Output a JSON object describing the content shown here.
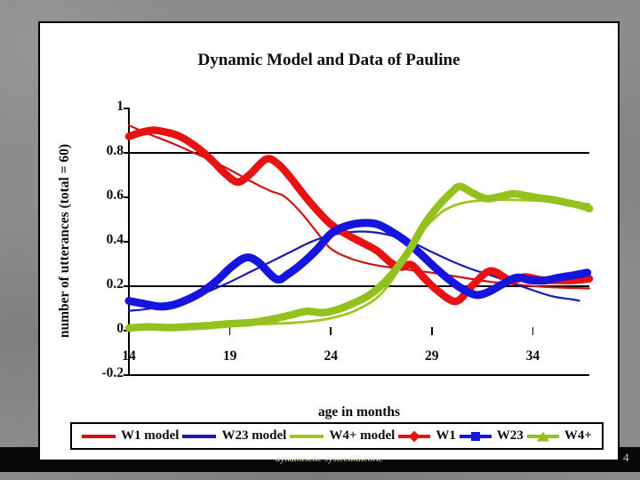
{
  "slide": {
    "title": "Dynamic Model and Data of Pauline",
    "footer": "dynamische systeemtheorie",
    "page_number": "4"
  },
  "chart_data": {
    "type": "line",
    "title": "Dynamic Model and Data of Pauline",
    "xlabel": "age in months",
    "ylabel": "number of utterances (total = 60)",
    "x_range": [
      14,
      36.8
    ],
    "y_range": [
      -0.2,
      1.0
    ],
    "x_axis_position": 0,
    "grid": "partial",
    "gridlines_at": [
      0.8,
      0.2
    ],
    "legend_position": "bottom",
    "y_ticks": [
      {
        "label": "1",
        "value": 1
      },
      {
        "label": "0.8",
        "value": 0.8
      },
      {
        "label": "0.6",
        "value": 0.6
      },
      {
        "label": "0.4",
        "value": 0.4
      },
      {
        "label": "0.2",
        "value": 0.2
      },
      {
        "label": "0",
        "value": 0
      },
      {
        "label": "-0.2",
        "value": -0.2
      }
    ],
    "x_ticks": [
      {
        "label": "14",
        "value": 14
      },
      {
        "label": "19",
        "value": 19
      },
      {
        "label": "24",
        "value": 24
      },
      {
        "label": "29",
        "value": 29
      },
      {
        "label": "34",
        "value": 34
      }
    ],
    "x_tick_marks": [
      19,
      24,
      29,
      34
    ],
    "series": [
      {
        "name": "W1 model",
        "color": "#cc1315",
        "width": 2.2,
        "marker": null,
        "points": [
          [
            14,
            0.92
          ],
          [
            15,
            0.88
          ],
          [
            16,
            0.845
          ],
          [
            17,
            0.805
          ],
          [
            18,
            0.765
          ],
          [
            19,
            0.72
          ],
          [
            20,
            0.67
          ],
          [
            21,
            0.625
          ],
          [
            21.7,
            0.6
          ],
          [
            22.5,
            0.53
          ],
          [
            23.3,
            0.44
          ],
          [
            24,
            0.365
          ],
          [
            25,
            0.32
          ],
          [
            26,
            0.295
          ],
          [
            27,
            0.28
          ],
          [
            28,
            0.268
          ],
          [
            29,
            0.257
          ],
          [
            30,
            0.243
          ],
          [
            31,
            0.228
          ],
          [
            32,
            0.215
          ],
          [
            33,
            0.205
          ],
          [
            34,
            0.197
          ],
          [
            35,
            0.191
          ],
          [
            36,
            0.188
          ],
          [
            36.8,
            0.186
          ]
        ]
      },
      {
        "name": "W23 model",
        "color": "#1b1bb4",
        "width": 2.2,
        "marker": null,
        "points": [
          [
            14,
            0.085
          ],
          [
            15,
            0.095
          ],
          [
            16,
            0.115
          ],
          [
            17,
            0.14
          ],
          [
            18,
            0.175
          ],
          [
            19,
            0.215
          ],
          [
            20,
            0.26
          ],
          [
            21,
            0.305
          ],
          [
            22,
            0.35
          ],
          [
            23,
            0.395
          ],
          [
            24,
            0.425
          ],
          [
            25,
            0.44
          ],
          [
            26,
            0.44
          ],
          [
            27,
            0.424
          ],
          [
            28,
            0.394
          ],
          [
            29,
            0.35
          ],
          [
            30,
            0.308
          ],
          [
            31,
            0.272
          ],
          [
            32,
            0.243
          ],
          [
            33,
            0.21
          ],
          [
            34,
            0.178
          ],
          [
            35,
            0.15
          ],
          [
            36,
            0.136
          ],
          [
            36.3,
            0.131
          ]
        ]
      },
      {
        "name": "W4+ model",
        "color": "#a0c51e",
        "width": 2.8,
        "marker": null,
        "points": [
          [
            14,
            0.012
          ],
          [
            15,
            0.013
          ],
          [
            16,
            0.015
          ],
          [
            17,
            0.017
          ],
          [
            18,
            0.019
          ],
          [
            19,
            0.021
          ],
          [
            20,
            0.024
          ],
          [
            21,
            0.027
          ],
          [
            22,
            0.031
          ],
          [
            23,
            0.038
          ],
          [
            24,
            0.052
          ],
          [
            25,
            0.078
          ],
          [
            26,
            0.125
          ],
          [
            26.5,
            0.163
          ],
          [
            27,
            0.22
          ],
          [
            27.5,
            0.29
          ],
          [
            28,
            0.37
          ],
          [
            28.5,
            0.44
          ],
          [
            29,
            0.49
          ],
          [
            29.5,
            0.53
          ],
          [
            30,
            0.555
          ],
          [
            30.5,
            0.57
          ],
          [
            31,
            0.578
          ],
          [
            32,
            0.585
          ],
          [
            33,
            0.585
          ],
          [
            34,
            0.582
          ],
          [
            35,
            0.577
          ],
          [
            36,
            0.571
          ],
          [
            36.8,
            0.565
          ]
        ]
      },
      {
        "name": "W1",
        "color": "#e81212",
        "width": 8.5,
        "marker": "diamond",
        "points": [
          [
            14,
            0.87
          ],
          [
            14.6,
            0.888
          ],
          [
            15.2,
            0.898
          ],
          [
            15.8,
            0.89
          ],
          [
            16.4,
            0.875
          ],
          [
            17,
            0.845
          ],
          [
            17.6,
            0.805
          ],
          [
            18.2,
            0.755
          ],
          [
            18.8,
            0.7
          ],
          [
            19.4,
            0.665
          ],
          [
            20,
            0.7
          ],
          [
            20.8,
            0.768
          ],
          [
            21.4,
            0.745
          ],
          [
            22,
            0.685
          ],
          [
            22.6,
            0.615
          ],
          [
            23.2,
            0.55
          ],
          [
            24,
            0.475
          ],
          [
            24.8,
            0.428
          ],
          [
            25.6,
            0.39
          ],
          [
            26.3,
            0.355
          ],
          [
            27,
            0.3
          ],
          [
            27.5,
            0.282
          ],
          [
            28,
            0.292
          ],
          [
            28.6,
            0.235
          ],
          [
            29.3,
            0.175
          ],
          [
            30.2,
            0.128
          ],
          [
            31,
            0.198
          ],
          [
            31.9,
            0.265
          ],
          [
            32.9,
            0.222
          ],
          [
            33.6,
            0.238
          ],
          [
            34.4,
            0.225
          ],
          [
            35.2,
            0.222
          ],
          [
            36,
            0.222
          ],
          [
            36.8,
            0.23
          ]
        ]
      },
      {
        "name": "W23",
        "color": "#1515dd",
        "width": 9,
        "marker": "square",
        "points": [
          [
            14,
            0.13
          ],
          [
            14.7,
            0.118
          ],
          [
            15.5,
            0.105
          ],
          [
            16.2,
            0.112
          ],
          [
            17,
            0.14
          ],
          [
            17.7,
            0.175
          ],
          [
            18.4,
            0.225
          ],
          [
            19.1,
            0.285
          ],
          [
            19.8,
            0.325
          ],
          [
            20.4,
            0.305
          ],
          [
            21.3,
            0.228
          ],
          [
            21.9,
            0.252
          ],
          [
            22.6,
            0.3
          ],
          [
            23.3,
            0.36
          ],
          [
            24,
            0.432
          ],
          [
            24.7,
            0.465
          ],
          [
            25.5,
            0.48
          ],
          [
            26.3,
            0.475
          ],
          [
            27,
            0.442
          ],
          [
            27.7,
            0.4
          ],
          [
            28.4,
            0.345
          ],
          [
            29.1,
            0.285
          ],
          [
            29.8,
            0.23
          ],
          [
            30.5,
            0.185
          ],
          [
            31.2,
            0.157
          ],
          [
            31.8,
            0.17
          ],
          [
            32.5,
            0.205
          ],
          [
            33.2,
            0.235
          ],
          [
            33.9,
            0.223
          ],
          [
            34.6,
            0.222
          ],
          [
            35.3,
            0.235
          ],
          [
            36,
            0.245
          ],
          [
            36.7,
            0.257
          ]
        ]
      },
      {
        "name": "W4+",
        "color": "#95c11f",
        "width": 8.5,
        "marker": "triangle",
        "points": [
          [
            14,
            0.008
          ],
          [
            15,
            0.013
          ],
          [
            16,
            0.01
          ],
          [
            17,
            0.014
          ],
          [
            18,
            0.019
          ],
          [
            19,
            0.027
          ],
          [
            20,
            0.032
          ],
          [
            21,
            0.046
          ],
          [
            22,
            0.066
          ],
          [
            22.8,
            0.083
          ],
          [
            23.6,
            0.077
          ],
          [
            24.3,
            0.09
          ],
          [
            25,
            0.115
          ],
          [
            25.8,
            0.15
          ],
          [
            26.5,
            0.2
          ],
          [
            27.2,
            0.27
          ],
          [
            27.9,
            0.36
          ],
          [
            28.6,
            0.47
          ],
          [
            29.3,
            0.555
          ],
          [
            30,
            0.62
          ],
          [
            30.4,
            0.645
          ],
          [
            31,
            0.617
          ],
          [
            31.7,
            0.59
          ],
          [
            32.4,
            0.6
          ],
          [
            33,
            0.612
          ],
          [
            33.6,
            0.605
          ],
          [
            34.2,
            0.595
          ],
          [
            35,
            0.585
          ],
          [
            35.8,
            0.57
          ],
          [
            36.4,
            0.558
          ],
          [
            36.8,
            0.545
          ]
        ]
      }
    ]
  },
  "legend": {
    "items": [
      {
        "label": "W1 model",
        "color": "#cc1315",
        "style": "line",
        "marker": null
      },
      {
        "label": "W23 model",
        "color": "#1b1bb4",
        "style": "line",
        "marker": null
      },
      {
        "label": "W4+ model",
        "color": "#a0c51e",
        "style": "line",
        "marker": null
      },
      {
        "label": "W1",
        "color": "#e81212",
        "style": "line-marker",
        "marker": "diamond"
      },
      {
        "label": "W23",
        "color": "#1515dd",
        "style": "line-marker",
        "marker": "square"
      },
      {
        "label": "W4+",
        "color": "#95c11f",
        "style": "line-marker",
        "marker": "triangle"
      }
    ]
  }
}
